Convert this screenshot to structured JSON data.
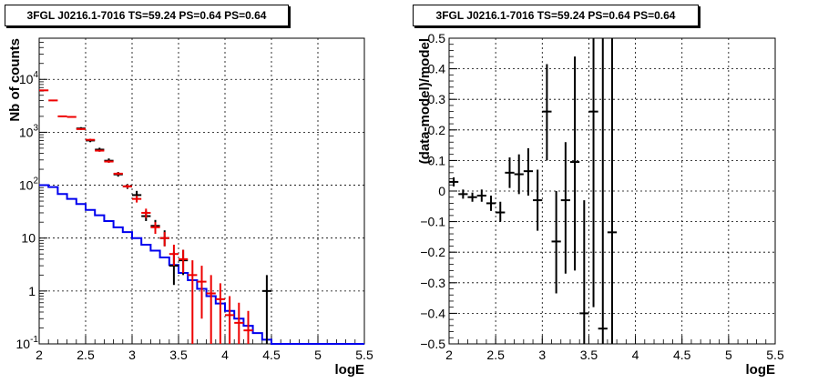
{
  "chart_data": [
    {
      "type": "histogram",
      "title": "3FGL J0216.1-7016 TS=59.24 PS=0.64 PS=0.64",
      "xlabel": "logE",
      "ylabel": "Nb of counts",
      "xlim": [
        2,
        5.5
      ],
      "ylim": [
        0.1,
        60000
      ],
      "y_scale": "log",
      "grid": true,
      "x_ticks": [
        {
          "v": 2,
          "label": "2"
        },
        {
          "v": 2.5,
          "label": "2.5"
        },
        {
          "v": 3,
          "label": "3"
        },
        {
          "v": 3.5,
          "label": "3.5"
        },
        {
          "v": 4,
          "label": "4"
        },
        {
          "v": 4.5,
          "label": "4.5"
        },
        {
          "v": 5,
          "label": "5"
        },
        {
          "v": 5.5,
          "label": "5.5"
        }
      ],
      "y_ticks": [
        {
          "v": 0.1,
          "base": "10",
          "exp": "-1"
        },
        {
          "v": 1,
          "base": "1",
          "exp": ""
        },
        {
          "v": 10,
          "base": "10",
          "exp": ""
        },
        {
          "v": 100,
          "base": "10",
          "exp": "2"
        },
        {
          "v": 1000,
          "base": "10",
          "exp": "3"
        },
        {
          "v": 10000,
          "base": "10",
          "exp": "4"
        }
      ],
      "series": [
        {
          "color": "#0000ee",
          "style": "step",
          "bin_edges": [
            2.0,
            2.1,
            2.2,
            2.3,
            2.4,
            2.5,
            2.6,
            2.7,
            2.8,
            2.9,
            3.0,
            3.1,
            3.2,
            3.3,
            3.4,
            3.5,
            3.6,
            3.7,
            3.8,
            3.9,
            4.0,
            4.1,
            4.2,
            4.3,
            4.4,
            4.5,
            4.6,
            4.7,
            4.8,
            4.9,
            5.0,
            5.1,
            5.2,
            5.3,
            5.4,
            5.5
          ],
          "values": [
            100,
            92,
            68,
            55,
            44,
            34,
            27,
            21,
            16,
            13,
            10,
            7.5,
            5.8,
            4.3,
            3.1,
            2.2,
            1.6,
            1.1,
            0.8,
            0.58,
            0.42,
            0.3,
            0.22,
            0.16,
            0.12,
            0.1,
            0.1,
            0.1,
            0.1,
            0.1,
            0.1,
            0.1,
            0.1,
            0.1,
            0.1
          ]
        },
        {
          "color": "#000000",
          "style": "errorbar",
          "points": [
            {
              "x": 2.45,
              "y": 1180,
              "lo": 1120,
              "hi": 1250
            },
            {
              "x": 2.55,
              "y": 700,
              "lo": 650,
              "hi": 750
            },
            {
              "x": 2.65,
              "y": 470,
              "lo": 430,
              "hi": 510
            },
            {
              "x": 2.75,
              "y": 290,
              "lo": 265,
              "hi": 320
            },
            {
              "x": 2.85,
              "y": 160,
              "lo": 145,
              "hi": 178
            },
            {
              "x": 2.95,
              "y": 95,
              "lo": 85,
              "hi": 105
            },
            {
              "x": 3.05,
              "y": 65,
              "lo": 55,
              "hi": 78
            },
            {
              "x": 3.15,
              "y": 26,
              "lo": 21,
              "hi": 33
            },
            {
              "x": 3.25,
              "y": 17,
              "lo": 13,
              "hi": 22
            },
            {
              "x": 3.35,
              "y": 10,
              "lo": 7,
              "hi": 14
            },
            {
              "x": 3.45,
              "y": 3,
              "lo": 1.3,
              "hi": 5.5
            },
            {
              "x": 3.55,
              "y": 3.8,
              "lo": 2,
              "hi": 6
            },
            {
              "x": 4.45,
              "y": 1,
              "lo": 0.1,
              "hi": 2
            }
          ]
        },
        {
          "color": "#ee0000",
          "style": "errorbar",
          "points": [
            {
              "x": 2.05,
              "y": 6200,
              "lo": 6000,
              "hi": 6400
            },
            {
              "x": 2.15,
              "y": 4000,
              "lo": 3880,
              "hi": 4120
            },
            {
              "x": 2.25,
              "y": 2000,
              "lo": 1940,
              "hi": 2060
            },
            {
              "x": 2.35,
              "y": 1950,
              "lo": 1890,
              "hi": 2010
            },
            {
              "x": 2.45,
              "y": 1150,
              "lo": 1110,
              "hi": 1190
            },
            {
              "x": 2.55,
              "y": 720,
              "lo": 690,
              "hi": 750
            },
            {
              "x": 2.65,
              "y": 450,
              "lo": 430,
              "hi": 470
            },
            {
              "x": 2.75,
              "y": 280,
              "lo": 265,
              "hi": 295
            },
            {
              "x": 2.85,
              "y": 165,
              "lo": 155,
              "hi": 175
            },
            {
              "x": 2.95,
              "y": 95,
              "lo": 88,
              "hi": 102
            },
            {
              "x": 3.05,
              "y": 55,
              "lo": 47,
              "hi": 63
            },
            {
              "x": 3.15,
              "y": 30,
              "lo": 24,
              "hi": 36
            },
            {
              "x": 3.25,
              "y": 16,
              "lo": 12,
              "hi": 20
            },
            {
              "x": 3.35,
              "y": 10,
              "lo": 7,
              "hi": 13
            },
            {
              "x": 3.45,
              "y": 5,
              "lo": 3,
              "hi": 7.5
            },
            {
              "x": 3.55,
              "y": 4,
              "lo": 2.2,
              "hi": 6
            },
            {
              "x": 3.65,
              "y": 2,
              "lo": 0.1,
              "hi": 3.8
            },
            {
              "x": 3.75,
              "y": 1.5,
              "lo": 0.3,
              "hi": 3
            },
            {
              "x": 3.85,
              "y": 0.9,
              "lo": 0.1,
              "hi": 2
            },
            {
              "x": 3.95,
              "y": 0.7,
              "lo": 0.1,
              "hi": 1.4
            },
            {
              "x": 4.05,
              "y": 0.35,
              "lo": 0.1,
              "hi": 0.8
            },
            {
              "x": 4.15,
              "y": 0.25,
              "lo": 0.1,
              "hi": 0.6
            },
            {
              "x": 4.25,
              "y": 0.18,
              "lo": 0.1,
              "hi": 0.42
            }
          ]
        }
      ]
    },
    {
      "type": "scatter",
      "title": "3FGL J0216.1-7016 TS=59.24 PS=0.64 PS=0.64",
      "xlabel": "logE",
      "ylabel": "(data-model)/model",
      "xlim": [
        2,
        5.5
      ],
      "ylim": [
        -0.5,
        0.5
      ],
      "y_scale": "linear",
      "grid": true,
      "x_ticks": [
        {
          "v": 2,
          "label": "2"
        },
        {
          "v": 2.5,
          "label": "2.5"
        },
        {
          "v": 3,
          "label": "3"
        },
        {
          "v": 3.5,
          "label": "3.5"
        },
        {
          "v": 4,
          "label": "4"
        },
        {
          "v": 4.5,
          "label": "4.5"
        },
        {
          "v": 5,
          "label": "5"
        },
        {
          "v": 5.5,
          "label": "5.5"
        }
      ],
      "y_ticks": [
        {
          "v": -0.5,
          "label": "−0.5"
        },
        {
          "v": -0.4,
          "label": "−0.4"
        },
        {
          "v": -0.3,
          "label": "−0.3"
        },
        {
          "v": -0.2,
          "label": "−0.2"
        },
        {
          "v": -0.1,
          "label": "−0.1"
        },
        {
          "v": 0,
          "label": "0"
        },
        {
          "v": 0.1,
          "label": "0.1"
        },
        {
          "v": 0.2,
          "label": "0.2"
        },
        {
          "v": 0.3,
          "label": "0.3"
        },
        {
          "v": 0.4,
          "label": "0.4"
        },
        {
          "v": 0.5,
          "label": "0.5"
        }
      ],
      "series": [
        {
          "color": "#000000",
          "style": "errorbar",
          "points": [
            {
              "x": 2.05,
              "y": 0.03,
              "lo": 0.015,
              "hi": 0.045
            },
            {
              "x": 2.15,
              "y": -0.01,
              "lo": -0.025,
              "hi": 0.005
            },
            {
              "x": 2.25,
              "y": -0.02,
              "lo": -0.035,
              "hi": -0.005
            },
            {
              "x": 2.35,
              "y": -0.015,
              "lo": -0.035,
              "hi": 0.005
            },
            {
              "x": 2.45,
              "y": -0.04,
              "lo": -0.065,
              "hi": -0.015
            },
            {
              "x": 2.55,
              "y": -0.07,
              "lo": -0.1,
              "hi": -0.035
            },
            {
              "x": 2.65,
              "y": 0.06,
              "lo": 0.01,
              "hi": 0.11
            },
            {
              "x": 2.75,
              "y": 0.055,
              "lo": -0.01,
              "hi": 0.12
            },
            {
              "x": 2.85,
              "y": 0.065,
              "lo": -0.015,
              "hi": 0.14
            },
            {
              "x": 2.95,
              "y": -0.03,
              "lo": -0.13,
              "hi": 0.07
            },
            {
              "x": 3.05,
              "y": 0.26,
              "lo": 0.1,
              "hi": 0.415
            },
            {
              "x": 3.15,
              "y": -0.165,
              "lo": -0.335,
              "hi": 0.0
            },
            {
              "x": 3.25,
              "y": -0.03,
              "lo": -0.27,
              "hi": 0.16
            },
            {
              "x": 3.35,
              "y": 0.095,
              "lo": -0.26,
              "hi": 0.44
            },
            {
              "x": 3.45,
              "y": -0.4,
              "lo": -0.5,
              "hi": -0.03
            },
            {
              "x": 3.55,
              "y": 0.26,
              "lo": -0.38,
              "hi": 0.5
            },
            {
              "x": 3.65,
              "y": -0.45,
              "lo": -0.5,
              "hi": 0.5
            },
            {
              "x": 3.75,
              "y": -0.135,
              "lo": -0.5,
              "hi": 0.5
            }
          ]
        }
      ]
    }
  ]
}
